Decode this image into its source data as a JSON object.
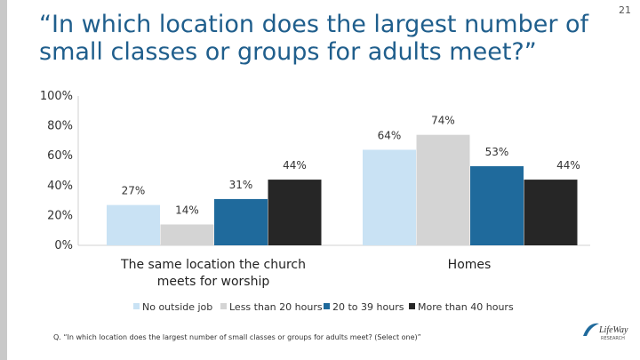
{
  "slide": {
    "title": "“In which location does the largest number of small classes or groups for adults meet?”",
    "page_number": "21",
    "footnote": "Q. “In which location does the largest number of small classes or groups for adults meet? (Select one)”",
    "logo_text": "LifeWay",
    "logo_subtext": "RESEARCH"
  },
  "chart_data": {
    "type": "bar",
    "categories": [
      "The same location the church meets for worship",
      "Homes"
    ],
    "series": [
      {
        "name": "No outside job",
        "values": [
          27,
          64
        ],
        "color": "#c9e2f4"
      },
      {
        "name": "Less than 20 hours",
        "values": [
          14,
          74
        ],
        "color": "#d4d4d4"
      },
      {
        "name": "20 to 39 hours",
        "values": [
          31,
          53
        ],
        "color": "#1f6a9c"
      },
      {
        "name": "More than 40 hours",
        "values": [
          44,
          44
        ],
        "color": "#262626"
      }
    ],
    "value_labels": [
      [
        "27%",
        "14%",
        "31%",
        "44%"
      ],
      [
        "64%",
        "74%",
        "53%",
        "44%"
      ]
    ],
    "y_ticks": [
      "100%",
      "80%",
      "60%",
      "40%",
      "20%",
      "0%"
    ],
    "ylim": [
      0,
      100
    ],
    "grid": false,
    "legend_position": "bottom"
  }
}
